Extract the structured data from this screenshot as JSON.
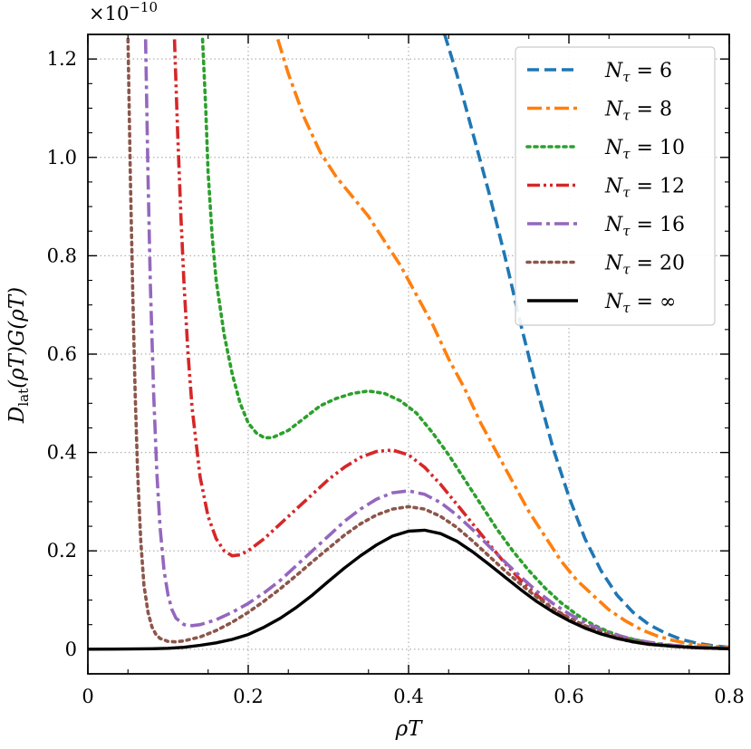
{
  "chart_data": {
    "type": "line",
    "xlabel": "ρT",
    "ylabel": "D_lat(ρT)G(ρT)",
    "ylabel_parts": {
      "main": "D",
      "sub": "lat",
      "rest": "(ρT)G(ρT)"
    },
    "y_scale_label": {
      "base": "×10",
      "exponent": "−10"
    },
    "xlim": [
      0,
      0.8
    ],
    "ylim": [
      -0.05,
      1.25
    ],
    "x_ticks": [
      0,
      0.2,
      0.4,
      0.6,
      0.8
    ],
    "x_tick_labels": [
      "0",
      "0.2",
      "0.4",
      "0.6",
      "0.8"
    ],
    "y_ticks": [
      0,
      0.2,
      0.4,
      0.6,
      0.8,
      1.0,
      1.2
    ],
    "y_tick_labels": [
      "0",
      "0.2",
      "0.4",
      "0.6",
      "0.8",
      "1.0",
      "1.2"
    ],
    "grid": true,
    "legend_position": "top-right",
    "series": [
      {
        "name": "Nτ = 6",
        "label_main": "N",
        "label_sub": "τ",
        "label_rest": " = 6",
        "color": "#1f77b4",
        "dash": "dashed",
        "x": [
          0.445,
          0.46,
          0.48,
          0.5,
          0.52,
          0.54,
          0.56,
          0.58,
          0.6,
          0.62,
          0.64,
          0.66,
          0.68,
          0.7,
          0.72,
          0.74,
          0.76,
          0.78,
          0.8
        ],
        "y": [
          1.25,
          1.17,
          1.05,
          0.93,
          0.8,
          0.66,
          0.53,
          0.41,
          0.31,
          0.225,
          0.16,
          0.11,
          0.075,
          0.05,
          0.033,
          0.02,
          0.012,
          0.007,
          0.004
        ]
      },
      {
        "name": "Nτ = 8",
        "label_main": "N",
        "label_sub": "τ",
        "label_rest": " = 8",
        "color": "#ff7f0e",
        "dash": "dashdot",
        "x": [
          0.237,
          0.25,
          0.27,
          0.29,
          0.31,
          0.33,
          0.35,
          0.37,
          0.39,
          0.41,
          0.43,
          0.45,
          0.47,
          0.49,
          0.51,
          0.53,
          0.55,
          0.57,
          0.59,
          0.61,
          0.63,
          0.65,
          0.67,
          0.69,
          0.71,
          0.73,
          0.75,
          0.77,
          0.8
        ],
        "y": [
          1.24,
          1.17,
          1.08,
          1.01,
          0.96,
          0.92,
          0.88,
          0.83,
          0.78,
          0.72,
          0.66,
          0.59,
          0.53,
          0.46,
          0.4,
          0.34,
          0.28,
          0.23,
          0.18,
          0.14,
          0.11,
          0.08,
          0.058,
          0.04,
          0.027,
          0.018,
          0.011,
          0.007,
          0.003
        ]
      },
      {
        "name": "Nτ = 10",
        "label_main": "N",
        "label_sub": "τ",
        "label_rest": " = 10",
        "color": "#2ca02c",
        "dash": "dotted",
        "x": [
          0.143,
          0.147,
          0.15,
          0.155,
          0.16,
          0.17,
          0.18,
          0.19,
          0.2,
          0.21,
          0.22,
          0.23,
          0.25,
          0.27,
          0.29,
          0.31,
          0.33,
          0.35,
          0.37,
          0.39,
          0.41,
          0.43,
          0.45,
          0.47,
          0.49,
          0.51,
          0.53,
          0.55,
          0.57,
          0.59,
          0.61,
          0.63,
          0.65,
          0.67,
          0.7,
          0.73,
          0.76,
          0.8
        ],
        "y": [
          1.24,
          1.1,
          0.97,
          0.84,
          0.75,
          0.64,
          0.56,
          0.5,
          0.46,
          0.44,
          0.43,
          0.43,
          0.445,
          0.47,
          0.495,
          0.51,
          0.52,
          0.525,
          0.52,
          0.505,
          0.48,
          0.44,
          0.395,
          0.345,
          0.295,
          0.245,
          0.2,
          0.16,
          0.125,
          0.095,
          0.07,
          0.05,
          0.035,
          0.024,
          0.013,
          0.007,
          0.004,
          0.002
        ]
      },
      {
        "name": "Nτ = 12",
        "label_main": "N",
        "label_sub": "τ",
        "label_rest": " = 12",
        "color": "#d62728",
        "dash": "dashdotdot",
        "x": [
          0.108,
          0.112,
          0.116,
          0.12,
          0.125,
          0.13,
          0.14,
          0.15,
          0.16,
          0.17,
          0.18,
          0.19,
          0.2,
          0.22,
          0.24,
          0.26,
          0.28,
          0.3,
          0.32,
          0.34,
          0.36,
          0.38,
          0.4,
          0.42,
          0.44,
          0.46,
          0.48,
          0.5,
          0.52,
          0.54,
          0.56,
          0.58,
          0.6,
          0.62,
          0.64,
          0.66,
          0.68,
          0.7,
          0.73,
          0.76,
          0.8
        ],
        "y": [
          1.24,
          1.05,
          0.88,
          0.74,
          0.6,
          0.49,
          0.35,
          0.27,
          0.225,
          0.2,
          0.19,
          0.192,
          0.2,
          0.225,
          0.255,
          0.285,
          0.315,
          0.345,
          0.37,
          0.39,
          0.402,
          0.405,
          0.395,
          0.37,
          0.335,
          0.295,
          0.255,
          0.215,
          0.175,
          0.14,
          0.11,
          0.083,
          0.062,
          0.045,
          0.032,
          0.022,
          0.015,
          0.01,
          0.006,
          0.003,
          0.001
        ]
      },
      {
        "name": "Nτ = 16",
        "label_main": "N",
        "label_sub": "τ",
        "label_rest": " = 16",
        "color": "#9467bd",
        "dash": "dashdot",
        "x": [
          0.072,
          0.075,
          0.078,
          0.082,
          0.086,
          0.09,
          0.095,
          0.1,
          0.105,
          0.11,
          0.12,
          0.13,
          0.14,
          0.16,
          0.18,
          0.2,
          0.22,
          0.24,
          0.26,
          0.28,
          0.3,
          0.32,
          0.34,
          0.36,
          0.38,
          0.4,
          0.42,
          0.44,
          0.46,
          0.48,
          0.5,
          0.52,
          0.54,
          0.56,
          0.58,
          0.6,
          0.62,
          0.64,
          0.66,
          0.68,
          0.7,
          0.73,
          0.76,
          0.8
        ],
        "y": [
          1.24,
          0.96,
          0.74,
          0.52,
          0.36,
          0.25,
          0.16,
          0.11,
          0.08,
          0.063,
          0.05,
          0.048,
          0.05,
          0.06,
          0.075,
          0.093,
          0.115,
          0.14,
          0.17,
          0.2,
          0.23,
          0.26,
          0.285,
          0.305,
          0.318,
          0.322,
          0.315,
          0.298,
          0.273,
          0.243,
          0.21,
          0.178,
          0.147,
          0.118,
          0.093,
          0.072,
          0.054,
          0.04,
          0.029,
          0.02,
          0.014,
          0.008,
          0.004,
          0.002
        ]
      },
      {
        "name": "Nτ = 20",
        "label_main": "N",
        "label_sub": "τ",
        "label_rest": " = 20",
        "color": "#8c564b",
        "dash": "dotted",
        "x": [
          0.05,
          0.053,
          0.056,
          0.059,
          0.062,
          0.066,
          0.07,
          0.075,
          0.08,
          0.085,
          0.09,
          0.1,
          0.11,
          0.12,
          0.14,
          0.16,
          0.18,
          0.2,
          0.22,
          0.24,
          0.26,
          0.28,
          0.3,
          0.32,
          0.34,
          0.36,
          0.38,
          0.4,
          0.42,
          0.44,
          0.46,
          0.48,
          0.5,
          0.52,
          0.54,
          0.56,
          0.58,
          0.6,
          0.62,
          0.64,
          0.66,
          0.68,
          0.7,
          0.73,
          0.76,
          0.8
        ],
        "y": [
          1.24,
          0.96,
          0.72,
          0.52,
          0.36,
          0.22,
          0.13,
          0.075,
          0.045,
          0.03,
          0.022,
          0.016,
          0.015,
          0.017,
          0.025,
          0.038,
          0.055,
          0.075,
          0.098,
          0.123,
          0.15,
          0.178,
          0.205,
          0.232,
          0.255,
          0.273,
          0.285,
          0.29,
          0.285,
          0.27,
          0.248,
          0.22,
          0.19,
          0.16,
          0.132,
          0.106,
          0.083,
          0.064,
          0.048,
          0.035,
          0.025,
          0.017,
          0.011,
          0.006,
          0.003,
          0.001
        ]
      },
      {
        "name": "Nτ = ∞",
        "label_main": "N",
        "label_sub": "τ",
        "label_rest": " = ∞",
        "color": "#000000",
        "dash": "solid",
        "x": [
          0.0,
          0.05,
          0.08,
          0.1,
          0.12,
          0.14,
          0.16,
          0.18,
          0.2,
          0.22,
          0.24,
          0.26,
          0.28,
          0.3,
          0.32,
          0.34,
          0.36,
          0.38,
          0.4,
          0.42,
          0.44,
          0.46,
          0.48,
          0.5,
          0.52,
          0.54,
          0.56,
          0.58,
          0.6,
          0.62,
          0.64,
          0.66,
          0.68,
          0.7,
          0.73,
          0.76,
          0.8
        ],
        "y": [
          0.0,
          0.0005,
          0.001,
          0.002,
          0.004,
          0.008,
          0.013,
          0.02,
          0.03,
          0.045,
          0.063,
          0.085,
          0.11,
          0.138,
          0.165,
          0.19,
          0.212,
          0.23,
          0.24,
          0.242,
          0.235,
          0.22,
          0.198,
          0.173,
          0.147,
          0.121,
          0.097,
          0.076,
          0.058,
          0.043,
          0.031,
          0.022,
          0.015,
          0.01,
          0.006,
          0.003,
          0.001
        ]
      }
    ]
  }
}
